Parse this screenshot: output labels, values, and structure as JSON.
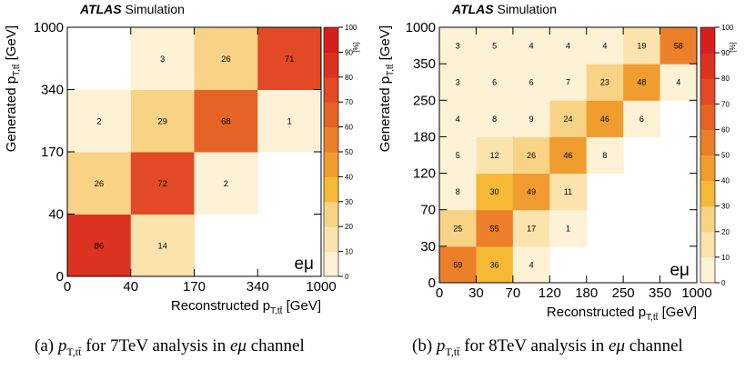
{
  "colors": {
    "scale": [
      "#ffffff",
      "#fdf1d6",
      "#fbe3ae",
      "#f8d386",
      "#f5b936",
      "#f09c2e",
      "#eb7f2a",
      "#e66326",
      "#e14a24",
      "#dc3222",
      "#d81f1f"
    ],
    "axis": "#000000"
  },
  "chart_data": [
    {
      "type": "heatmap",
      "header_bold": "ATLAS",
      "header_rest": "Simulation",
      "xlabel": "Reconstructed p",
      "xlabel_sub": "T,tt̄",
      "xlabel_unit": "[GeV]",
      "ylabel": "Generated p",
      "ylabel_sub": "T,tt̄",
      "ylabel_unit": "[GeV]",
      "xticks": [
        "0",
        "40",
        "170",
        "340",
        "1000"
      ],
      "yticks": [
        "0",
        "40",
        "170",
        "340",
        "1000"
      ],
      "zlim": [
        0,
        100
      ],
      "zticks": [
        "0",
        "10",
        "20",
        "30",
        "40",
        "50",
        "60",
        "70",
        "80",
        "90",
        "100"
      ],
      "zunit": "[%]",
      "channel": "eμ",
      "cells": [
        [
          86,
          14,
          null,
          null
        ],
        [
          26,
          72,
          2,
          null
        ],
        [
          2,
          29,
          68,
          1
        ],
        [
          null,
          3,
          26,
          71
        ]
      ]
    },
    {
      "type": "heatmap",
      "header_bold": "ATLAS",
      "header_rest": "Simulation",
      "xlabel": "Reconstructed p",
      "xlabel_sub": "T,tt̄",
      "xlabel_unit": "[GeV]",
      "ylabel": "Generated p",
      "ylabel_sub": "T,tt̄",
      "ylabel_unit": "[GeV]",
      "xticks": [
        "0",
        "30",
        "70",
        "120",
        "180",
        "250",
        "350",
        "1000"
      ],
      "yticks": [
        "0",
        "30",
        "70",
        "120",
        "180",
        "250",
        "350",
        "1000"
      ],
      "zlim": [
        0,
        100
      ],
      "zticks": [
        "0",
        "10",
        "20",
        "30",
        "40",
        "50",
        "60",
        "70",
        "80",
        "90",
        "100"
      ],
      "zunit": "[%]",
      "channel": "eμ",
      "cells": [
        [
          59,
          36,
          4,
          null,
          null,
          null,
          null
        ],
        [
          25,
          55,
          17,
          1,
          null,
          null,
          null
        ],
        [
          8,
          30,
          49,
          11,
          null,
          null,
          null
        ],
        [
          5,
          12,
          26,
          46,
          8,
          null,
          null
        ],
        [
          4,
          8,
          9,
          24,
          46,
          6,
          null
        ],
        [
          3,
          6,
          6,
          7,
          23,
          48,
          4
        ],
        [
          3,
          5,
          4,
          4,
          4,
          19,
          58
        ]
      ]
    }
  ],
  "captions": [
    {
      "label": "(a)",
      "sym": "p",
      "sub": "T,tt̄",
      "rest": "for 7TeV analysis in",
      "chan": "eμ",
      "tail": "channel"
    },
    {
      "label": "(b)",
      "sym": "p",
      "sub": "T,tt̄",
      "rest": "for 8TeV analysis in",
      "chan": "eμ",
      "tail": "channel"
    }
  ]
}
